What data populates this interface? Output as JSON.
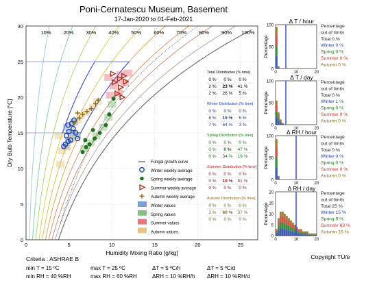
{
  "title": "Poni-Cernatescu Museum, Basement",
  "subtitle": "17-Jan-2020 to 01-Feb-2021",
  "chart_data": [
    {
      "type": "scatter",
      "name": "psychrometric-chart",
      "xlabel": "Humidity Mixing Ratio [g/kg]",
      "ylabel": "Dry Bulb Temperature [°C]",
      "xlim": [
        0,
        27
      ],
      "ylim": [
        0,
        30
      ],
      "xticks": [
        0,
        5,
        10,
        15,
        20,
        25
      ],
      "yticks": [
        0,
        5,
        10,
        15,
        20,
        25,
        30
      ],
      "rh_labels": [
        "10%",
        "20%",
        "30%",
        "40%",
        "50%",
        "60%",
        "70%",
        "80%",
        "90%",
        "100%"
      ],
      "rh_curves": [
        10,
        20,
        30,
        40,
        50,
        60,
        70,
        80,
        90,
        100
      ],
      "criteria_box": {
        "t_min": 15,
        "t_max": 25,
        "rh_min": 40,
        "rh_max": 60
      },
      "series": [
        {
          "name": "Winter weekly average",
          "marker": "circle",
          "color": "#1f3fa8",
          "points": [
            [
              4.4,
              13.1
            ],
            [
              4.6,
              13.4
            ],
            [
              4.9,
              13.8
            ],
            [
              5.2,
              14.0
            ],
            [
              4.7,
              14.6
            ],
            [
              5.0,
              15.2
            ],
            [
              5.5,
              15.6
            ],
            [
              4.9,
              16.1
            ],
            [
              5.6,
              16.8
            ],
            [
              5.3,
              16.3
            ],
            [
              6.0,
              14.2
            ],
            [
              5.8,
              15.0
            ]
          ]
        },
        {
          "name": "Spring weekly average",
          "marker": "hexagon",
          "color": "#1e7a1e",
          "points": [
            [
              6.6,
              12.3
            ],
            [
              7.0,
              13.0
            ],
            [
              7.4,
              13.4
            ],
            [
              8.0,
              14.2
            ],
            [
              8.6,
              15.0
            ],
            [
              9.3,
              16.1
            ],
            [
              9.7,
              17.6
            ],
            [
              10.2,
              19.8
            ],
            [
              7.8,
              15.4
            ],
            [
              6.9,
              14.0
            ]
          ]
        },
        {
          "name": "Summer weekly average",
          "marker": "triangle-right",
          "color": "#a03018",
          "points": [
            [
              10.3,
              22.1
            ],
            [
              10.9,
              22.6
            ],
            [
              11.4,
              23.0
            ],
            [
              11.0,
              21.4
            ],
            [
              10.6,
              20.5
            ],
            [
              11.6,
              22.2
            ],
            [
              10.1,
              23.3
            ],
            [
              11.2,
              20.0
            ]
          ]
        },
        {
          "name": "Autumn weekly average",
          "marker": "plus",
          "color": "#8a6a1a",
          "points": [
            [
              5.6,
              16.4
            ],
            [
              6.2,
              17.1
            ],
            [
              6.6,
              17.6
            ],
            [
              7.1,
              18.0
            ],
            [
              7.6,
              18.4
            ],
            [
              8.1,
              19.1
            ],
            [
              8.4,
              19.6
            ],
            [
              6.0,
              17.8
            ]
          ]
        }
      ],
      "legend": [
        {
          "label": "Fungal growth curve",
          "type": "line"
        },
        {
          "label": "Winter weekly average",
          "type": "circle"
        },
        {
          "label": "Spring weekly average",
          "type": "hexagon"
        },
        {
          "label": "Summer weekly average",
          "type": "triangle"
        },
        {
          "label": "Autumn weekly average",
          "type": "plus"
        },
        {
          "label": "Winter values",
          "type": "patch",
          "color": "#4f81c9"
        },
        {
          "label": "Spring values",
          "type": "patch",
          "color": "#5ba85b"
        },
        {
          "label": "Summer values",
          "type": "patch",
          "color": "#e24a5a"
        },
        {
          "label": "Autumn values",
          "type": "patch",
          "color": "#d8b45a"
        }
      ],
      "distribution_tables": [
        {
          "title": "Total Distribution [% time]",
          "color": "#000000",
          "rows": [
            [
              "0 %",
              "0 %",
              "0 %"
            ],
            [
              "2 %",
              "23 %",
              "41 %"
            ],
            [
              "2 %",
              "26 %",
              "5 %"
            ]
          ]
        },
        {
          "title": "Winter Distribution [% time]",
          "color": "#1f3fa8",
          "rows": [
            [
              "0 %",
              "0 %",
              "0 %"
            ],
            [
              "6 %",
              "15 %",
              "5 %"
            ],
            [
              "7 %",
              "64 %",
              "3 %"
            ]
          ]
        },
        {
          "title": "Spring Distribution [% time]",
          "color": "#1e7a1e",
          "rows": [
            [
              "0 %",
              "0 %",
              "0 %"
            ],
            [
              "0 %",
              "0 %",
              "47 %"
            ],
            [
              "0 %",
              "34 %",
              "19 %"
            ]
          ]
        },
        {
          "title": "Summer Distribution [% time]",
          "color": "#a82020",
          "rows": [
            [
              "0 %",
              "0 %",
              "0 %"
            ],
            [
              "0 %",
              "19 %",
              "81 %"
            ],
            [
              "0 %",
              "0 %",
              "0 %"
            ]
          ]
        },
        {
          "title": "Autumn Distribution [% time]",
          "color": "#8a6a1a",
          "rows": [
            [
              "0 %",
              "0 %",
              "0 %"
            ],
            [
              "2 %",
              "60 %",
              "37 %"
            ],
            [
              "0 %",
              "0 %",
              "0 %"
            ]
          ]
        }
      ]
    },
    {
      "type": "bar",
      "name": "delta-t-hour",
      "title": "Δ T / hour",
      "ylabel": "Percentage",
      "ylim": [
        0,
        100
      ],
      "yticks": [
        0,
        50,
        100
      ],
      "xlim": [
        0,
        20
      ],
      "limit": 5,
      "bins": [
        0,
        1
      ],
      "values": [
        95,
        5
      ],
      "stats": {
        "out": "Percentage out of limits",
        "Total": "Total 0 %",
        "Winter": "Winter 0 %",
        "Spring": "Spring 0 %",
        "Summer": "Summer 0 %",
        "Autumn": "Autumn 0 %"
      }
    },
    {
      "type": "bar",
      "name": "delta-t-day",
      "title": "Δ T / day",
      "ylabel": "Percentage",
      "ylim": [
        0,
        100
      ],
      "yticks": [
        0,
        50,
        100
      ],
      "xlim": [
        0,
        20
      ],
      "limit": 5,
      "bins": [
        0,
        1,
        2,
        3,
        4
      ],
      "values": [
        55,
        28,
        12,
        4,
        1
      ],
      "stats": {
        "out": "Percentage out of limits",
        "Total": "Total 0 %",
        "Winter": "Winter 1 %",
        "Spring": "Spring 0 %",
        "Summer": "Summer 0 %",
        "Autumn": "Autumn 0 %"
      }
    },
    {
      "type": "bar",
      "name": "delta-rh-hour",
      "title": "Δ RH / hour",
      "ylabel": "Percentage",
      "ylim": [
        0,
        100
      ],
      "yticks": [
        0,
        50,
        100
      ],
      "xlim": [
        0,
        20
      ],
      "limit": 10,
      "bins": [
        0,
        1
      ],
      "values": [
        92,
        8
      ],
      "stats": {
        "out": "Percentage out of limits",
        "Total": "Total 0 %",
        "Winter": "Winter 0 %",
        "Spring": "Spring 0 %",
        "Summer": "Summer 0 %",
        "Autumn": "Autumn 0 %"
      }
    },
    {
      "type": "bar",
      "name": "delta-rh-day",
      "title": "Δ RH / day",
      "ylabel": "Percentage",
      "ylim": [
        0,
        20
      ],
      "yticks": [
        0,
        5,
        10,
        15,
        20
      ],
      "xlim": [
        0,
        20
      ],
      "limit": 10,
      "bins": [
        0,
        1,
        2,
        3,
        4,
        5,
        6,
        7,
        8,
        9,
        10,
        11,
        12,
        13,
        14,
        15,
        16,
        17,
        18,
        19
      ],
      "values": [
        3,
        8,
        11,
        11,
        10,
        9,
        8,
        7,
        6,
        5,
        4,
        3,
        3,
        2,
        2,
        2,
        1,
        1,
        1,
        1
      ],
      "stats": {
        "out": "Percentage out of limits",
        "Total": "Total 25 %",
        "Winter": "Winter 15 %",
        "Spring": "Spring 9 %",
        "Summer": "Summer 63 %",
        "Autumn": "Autumn 15 %"
      }
    }
  ],
  "criteria": {
    "title": "Criteria : ASHRAE B",
    "min_t": "min T = 15 ºC",
    "max_t": "max T = 25 ºC",
    "dt_h": "ΔT = 5 ºC/h",
    "dt_d": "ΔT = 5 ºC/d",
    "min_rh": "min RH = 40 %RH",
    "max_rh": "max RH = 60 %RH",
    "drh_h": "ΔRH = 10 %RH/h",
    "drh_d": "ΔRH = 10 %RH/d"
  },
  "copyright": "Copyright TU/e",
  "colors": {
    "winter": "#1f3fa8",
    "spring": "#1e7a1e",
    "summer": "#c0392b",
    "autumn": "#8a6a1a",
    "limit": "#3b4ed8"
  }
}
